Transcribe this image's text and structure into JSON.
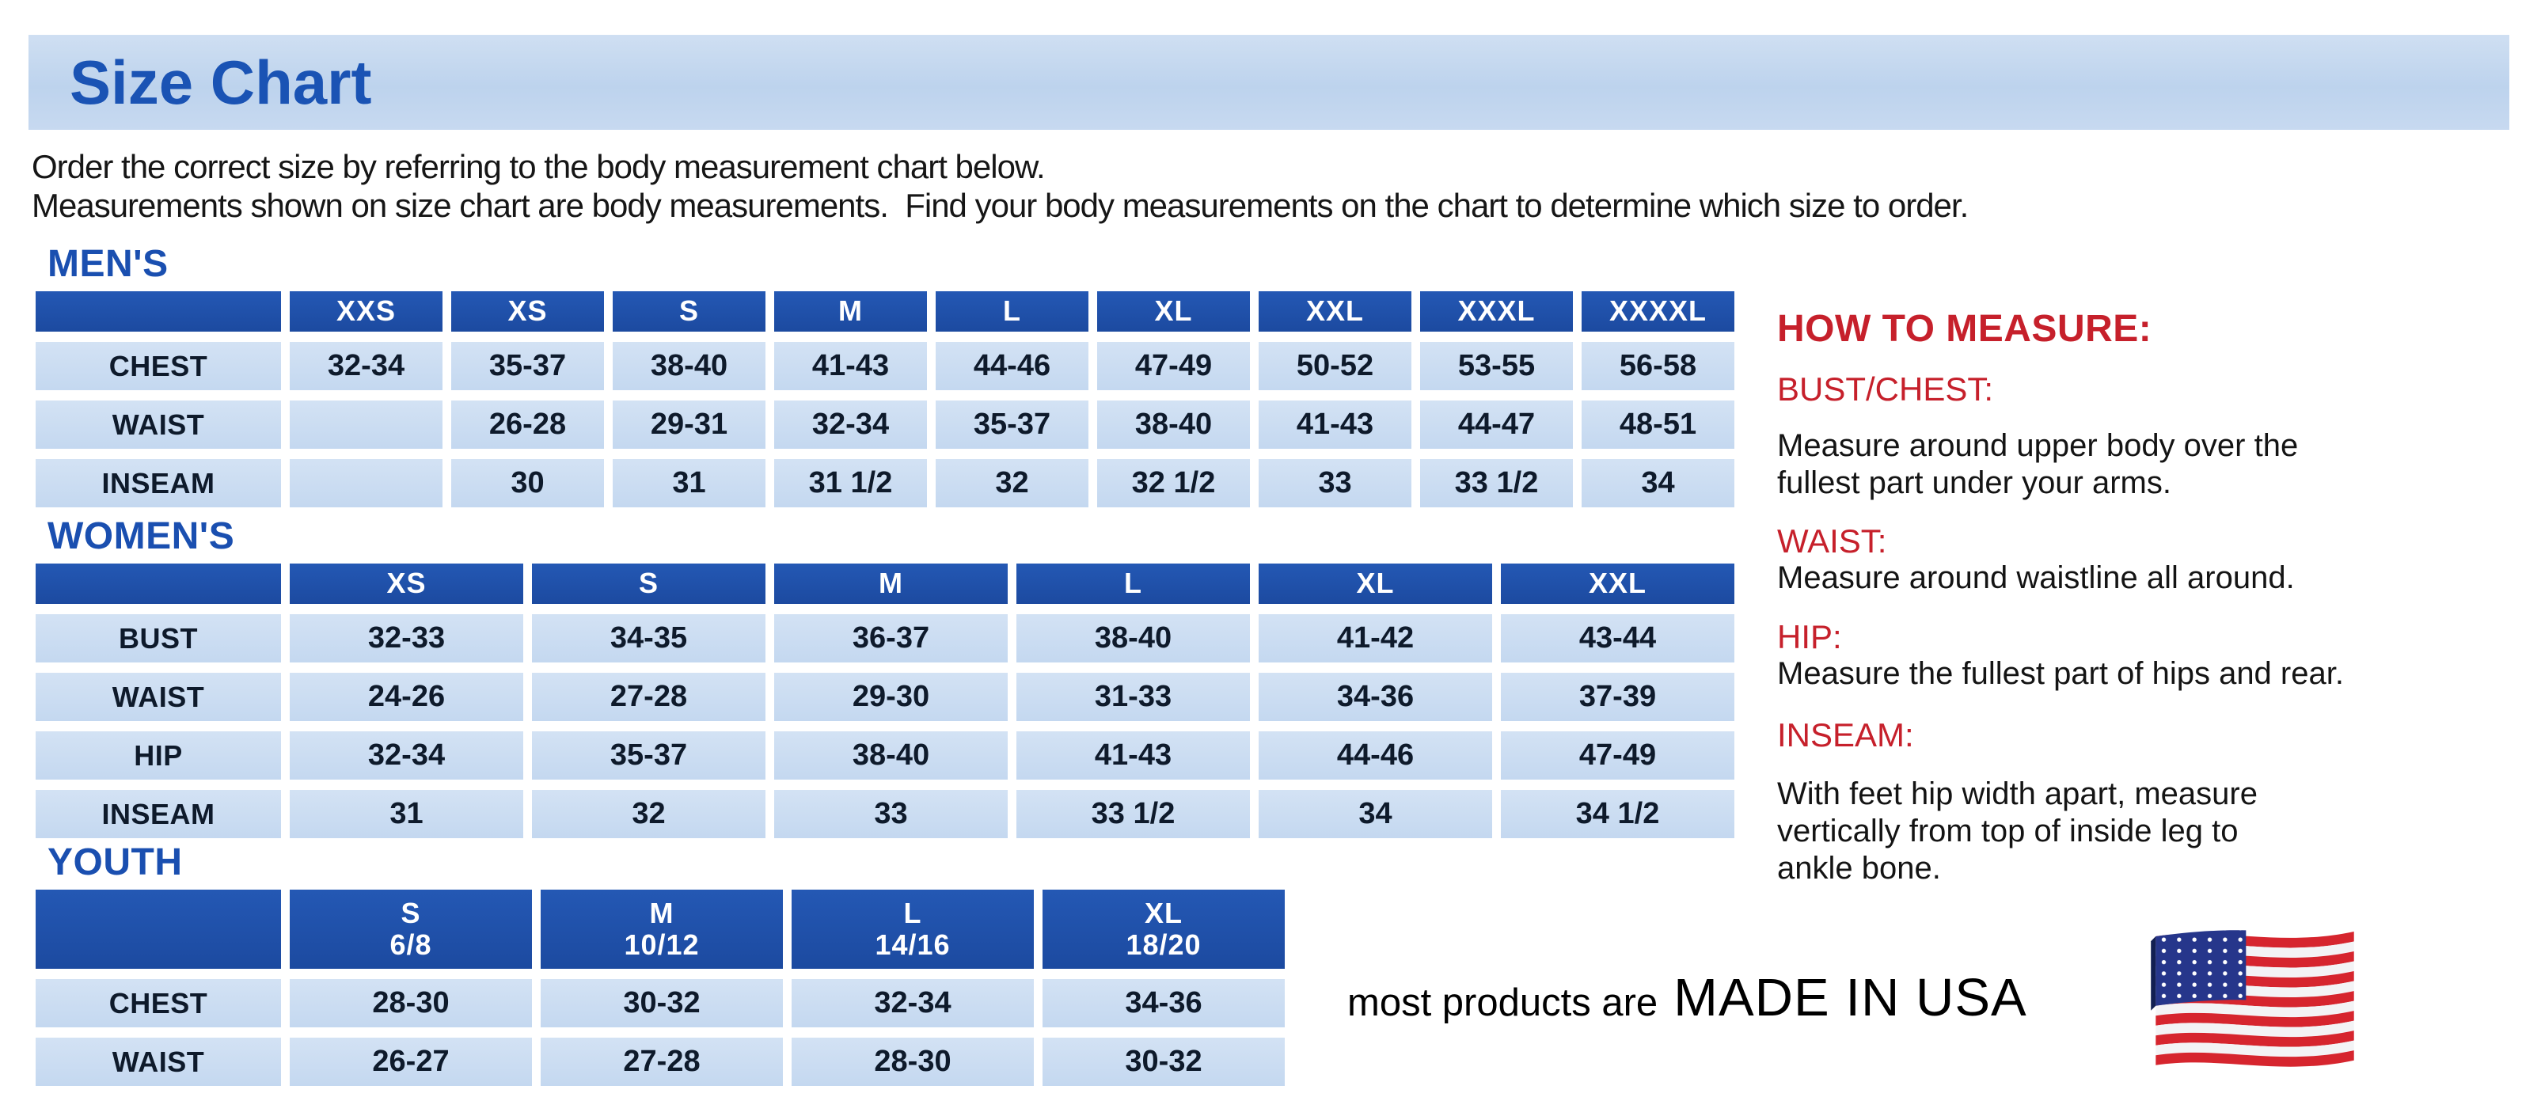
{
  "page": {
    "title": "Size Chart",
    "intro_line1": "Order the correct size by referring to the body measurement chart below.",
    "intro_line2": "Measurements shown on size chart are body measurements.  Find your body measurements on the chart to determine which size to order."
  },
  "colors": {
    "banner_bg": "#c2d6ee",
    "heading_blue": "#1a4fb0",
    "table_header_bg": "#1e4fa8",
    "cell_bg": "#c9dbf1",
    "cell_text": "#0e1a2b",
    "red_heading": "#c6202b"
  },
  "tables": [
    {
      "id": "mens",
      "title": "MEN'S",
      "columns": [
        "",
        "XXS",
        "XS",
        "S",
        "M",
        "L",
        "XL",
        "XXL",
        "XXXL",
        "XXXXL"
      ],
      "rows": [
        [
          "CHEST",
          "32-34",
          "35-37",
          "38-40",
          "41-43",
          "44-46",
          "47-49",
          "50-52",
          "53-55",
          "56-58"
        ],
        [
          "WAIST",
          "",
          "26-28",
          "29-31",
          "32-34",
          "35-37",
          "38-40",
          "41-43",
          "44-47",
          "48-51"
        ],
        [
          "INSEAM",
          "",
          "30",
          "31",
          "31 1/2",
          "32",
          "32 1/2",
          "33",
          "33 1/2",
          "34"
        ]
      ]
    },
    {
      "id": "womens",
      "title": "WOMEN'S",
      "columns": [
        "",
        "XS",
        "S",
        "M",
        "L",
        "XL",
        "XXL"
      ],
      "rows": [
        [
          "BUST",
          "32-33",
          "34-35",
          "36-37",
          "38-40",
          "41-42",
          "43-44"
        ],
        [
          "WAIST",
          "24-26",
          "27-28",
          "29-30",
          "31-33",
          "34-36",
          "37-39"
        ],
        [
          "HIP",
          "32-34",
          "35-37",
          "38-40",
          "41-43",
          "44-46",
          "47-49"
        ],
        [
          "INSEAM",
          "31",
          "32",
          "33",
          "33 1/2",
          "34",
          "34 1/2"
        ]
      ]
    },
    {
      "id": "youth",
      "title": "YOUTH",
      "columns": [
        "",
        "S\n6/8",
        "M\n10/12",
        "L\n14/16",
        "XL\n18/20"
      ],
      "rows": [
        [
          "CHEST",
          "28-30",
          "30-32",
          "32-34",
          "34-36"
        ],
        [
          "WAIST",
          "26-27",
          "27-28",
          "28-30",
          "30-32"
        ]
      ]
    }
  ],
  "measure": {
    "title": "HOW TO MEASURE:",
    "sections": [
      {
        "label": "BUST/CHEST:",
        "text": "Measure around upper body over the\nfullest part under your arms."
      },
      {
        "label": "WAIST:",
        "text": "Measure around waistline all around."
      },
      {
        "label": "HIP:",
        "text": "Measure the fullest part of hips and rear."
      },
      {
        "label": "INSEAM:",
        "text": "With feet hip width apart, measure\nvertically from top of inside leg to\nankle bone."
      }
    ]
  },
  "footer": {
    "made_in_prefix": "most products are",
    "made_in": "MADE IN USA",
    "flag_icon": "usa-flag"
  }
}
